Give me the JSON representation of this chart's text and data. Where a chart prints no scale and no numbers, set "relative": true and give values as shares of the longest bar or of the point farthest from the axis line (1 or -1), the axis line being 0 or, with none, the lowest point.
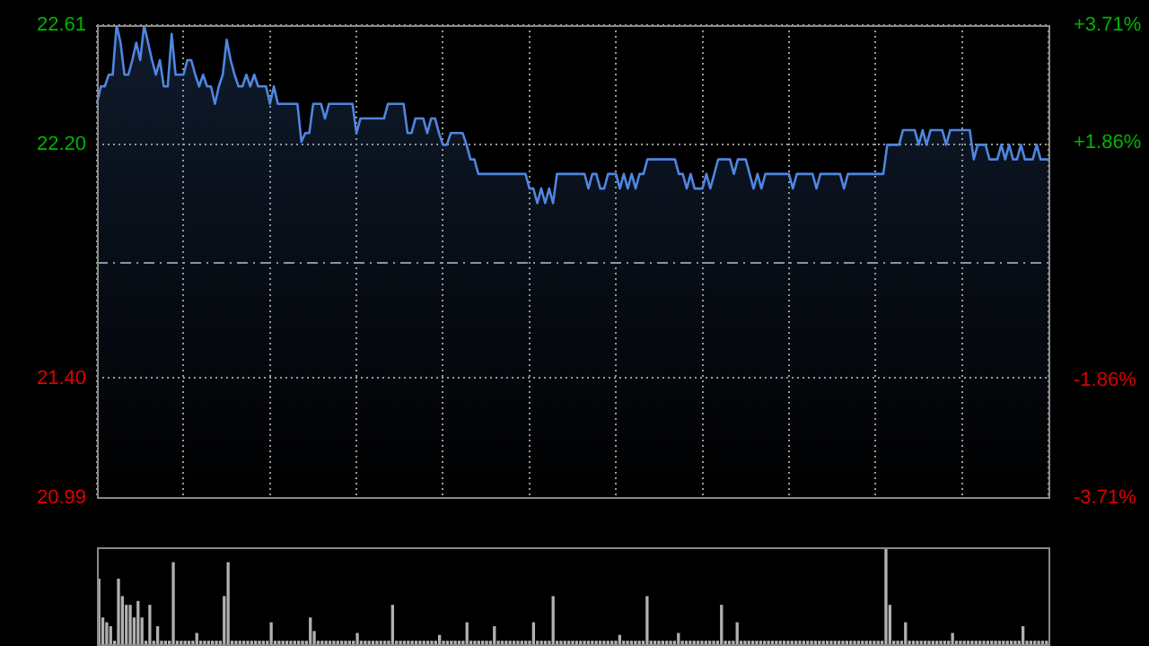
{
  "chart_data": [
    {
      "type": "area",
      "categories": [
        null,
        null,
        null,
        null,
        null,
        null,
        null,
        null,
        null,
        null,
        null,
        null,
        null,
        null,
        null,
        null,
        null,
        null,
        null,
        null,
        null,
        null,
        null,
        null,
        null,
        null,
        null,
        null,
        null,
        null,
        null,
        null,
        null,
        null,
        null,
        null,
        null,
        null,
        null,
        null,
        null,
        null,
        null,
        null,
        null,
        null,
        null,
        null,
        null,
        null,
        null,
        null,
        null,
        null,
        null,
        null,
        null,
        null,
        null,
        null,
        null,
        null,
        null,
        null,
        null,
        null,
        null,
        null,
        null,
        null,
        null,
        null,
        null,
        null,
        null,
        null,
        null,
        null,
        null,
        null,
        null,
        null,
        null,
        null,
        null,
        null,
        null,
        null,
        null,
        null,
        null,
        null,
        null,
        null,
        null,
        null,
        null,
        null,
        null,
        null,
        null,
        null,
        null,
        null,
        null,
        null,
        null,
        null,
        null,
        null,
        null,
        null,
        null,
        null,
        null,
        null,
        null,
        null,
        null,
        null,
        null,
        null,
        null,
        null,
        null,
        null,
        null,
        null,
        null,
        null,
        null,
        null,
        null,
        null,
        null,
        null,
        null,
        null,
        null,
        null,
        null,
        null,
        null,
        null,
        null,
        null,
        null,
        null,
        null,
        null,
        null,
        null,
        null,
        null,
        null,
        null,
        null,
        null,
        null,
        null,
        null,
        null,
        null,
        null,
        null,
        null,
        null,
        null,
        null,
        null,
        null,
        null,
        null,
        null,
        null,
        null,
        null,
        null,
        null,
        null,
        null,
        null,
        null,
        null,
        null,
        null,
        null,
        null,
        null,
        null,
        null,
        null,
        null,
        null,
        null,
        null,
        null,
        null,
        null,
        null,
        null,
        null,
        null,
        null,
        null,
        null,
        null,
        null,
        null,
        null,
        null,
        null,
        null,
        null,
        null,
        null,
        null,
        null,
        null,
        null,
        null,
        null,
        null,
        null,
        null,
        null,
        null,
        null,
        null,
        null,
        null,
        null,
        null,
        null,
        null,
        null,
        null,
        null,
        null,
        null,
        null,
        null,
        null
      ],
      "series": [
        {
          "color": "#4f86e0",
          "values": [
            22.34,
            22.4,
            22.4,
            22.44,
            22.44,
            22.61,
            22.55,
            22.44,
            22.44,
            22.49,
            22.55,
            22.49,
            22.61,
            22.55,
            22.49,
            22.44,
            22.49,
            22.4,
            22.4,
            22.58,
            22.44,
            22.44,
            22.44,
            22.49,
            22.49,
            22.44,
            22.4,
            22.44,
            22.4,
            22.4,
            22.34,
            22.4,
            22.44,
            22.56,
            22.49,
            22.44,
            22.4,
            22.4,
            22.44,
            22.4,
            22.44,
            22.4,
            22.4,
            22.4,
            22.34,
            22.4,
            22.34,
            22.34,
            22.34,
            22.34,
            22.34,
            22.34,
            22.21,
            22.24,
            22.24,
            22.34,
            22.34,
            22.34,
            22.29,
            22.34,
            22.34,
            22.34,
            22.34,
            22.34,
            22.34,
            22.34,
            22.24,
            22.29,
            22.29,
            22.29,
            22.29,
            22.29,
            22.29,
            22.29,
            22.34,
            22.34,
            22.34,
            22.34,
            22.34,
            22.24,
            22.24,
            22.29,
            22.29,
            22.29,
            22.24,
            22.29,
            22.29,
            22.24,
            22.2,
            22.2,
            22.24,
            22.24,
            22.24,
            22.24,
            22.2,
            22.15,
            22.15,
            22.1,
            22.1,
            22.1,
            22.1,
            22.1,
            22.1,
            22.1,
            22.1,
            22.1,
            22.1,
            22.1,
            22.1,
            22.1,
            22.05,
            22.05,
            22.0,
            22.05,
            22.0,
            22.05,
            22.0,
            22.1,
            22.1,
            22.1,
            22.1,
            22.1,
            22.1,
            22.1,
            22.1,
            22.05,
            22.1,
            22.1,
            22.05,
            22.05,
            22.1,
            22.1,
            22.1,
            22.05,
            22.1,
            22.05,
            22.1,
            22.05,
            22.1,
            22.1,
            22.15,
            22.15,
            22.15,
            22.15,
            22.15,
            22.15,
            22.15,
            22.15,
            22.1,
            22.1,
            22.05,
            22.1,
            22.05,
            22.05,
            22.05,
            22.1,
            22.05,
            22.1,
            22.15,
            22.15,
            22.15,
            22.15,
            22.1,
            22.15,
            22.15,
            22.15,
            22.1,
            22.05,
            22.1,
            22.05,
            22.1,
            22.1,
            22.1,
            22.1,
            22.1,
            22.1,
            22.1,
            22.05,
            22.1,
            22.1,
            22.1,
            22.1,
            22.1,
            22.05,
            22.1,
            22.1,
            22.1,
            22.1,
            22.1,
            22.1,
            22.05,
            22.1,
            22.1,
            22.1,
            22.1,
            22.1,
            22.1,
            22.1,
            22.1,
            22.1,
            22.1,
            22.2,
            22.2,
            22.2,
            22.2,
            22.25,
            22.25,
            22.25,
            22.25,
            22.2,
            22.25,
            22.2,
            22.25,
            22.25,
            22.25,
            22.25,
            22.2,
            22.25,
            22.25,
            22.25,
            22.25,
            22.25,
            22.25,
            22.15,
            22.2,
            22.2,
            22.2,
            22.15,
            22.15,
            22.15,
            22.2,
            22.15,
            22.2,
            22.15,
            22.15,
            22.2,
            22.15,
            22.15,
            22.15,
            22.2,
            22.15,
            22.15,
            22.15
          ]
        }
      ],
      "ylim": [
        20.99,
        22.61
      ],
      "yticks": [
        {
          "value": 20.99,
          "label": "20.99"
        },
        {
          "value": 21.4,
          "label": "21.40"
        },
        {
          "value": 22.2,
          "label": "22.20"
        },
        {
          "value": 22.61,
          "label": "22.61"
        }
      ],
      "y2lim": [
        -3.71,
        3.71
      ],
      "y2ticks": [
        {
          "value": -3.71,
          "label": "-3.71%"
        },
        {
          "value": -1.86,
          "label": "-1.86%"
        },
        {
          "value": 1.86,
          "label": "+1.86%"
        },
        {
          "value": 3.71,
          "label": "+3.71%"
        }
      ],
      "ref_lines": [
        {
          "axis": "y",
          "value": 21.8,
          "color": "#8a96a8",
          "line_style": "dashed"
        }
      ],
      "grid": true,
      "legend": false
    },
    {
      "type": "bar",
      "relative": true,
      "categories": [
        null,
        null,
        null,
        null,
        null,
        null,
        null,
        null,
        null,
        null,
        null,
        null,
        null,
        null,
        null,
        null,
        null,
        null,
        null,
        null,
        null,
        null,
        null,
        null,
        null,
        null,
        null,
        null,
        null,
        null,
        null,
        null,
        null,
        null,
        null,
        null,
        null,
        null,
        null,
        null,
        null,
        null,
        null,
        null,
        null,
        null,
        null,
        null,
        null,
        null,
        null,
        null,
        null,
        null,
        null,
        null,
        null,
        null,
        null,
        null,
        null,
        null,
        null,
        null,
        null,
        null,
        null,
        null,
        null,
        null,
        null,
        null,
        null,
        null,
        null,
        null,
        null,
        null,
        null,
        null,
        null,
        null,
        null,
        null,
        null,
        null,
        null,
        null,
        null,
        null,
        null,
        null,
        null,
        null,
        null,
        null,
        null,
        null,
        null,
        null,
        null,
        null,
        null,
        null,
        null,
        null,
        null,
        null,
        null,
        null,
        null,
        null,
        null,
        null,
        null,
        null,
        null,
        null,
        null,
        null,
        null,
        null,
        null,
        null,
        null,
        null,
        null,
        null,
        null,
        null,
        null,
        null,
        null,
        null,
        null,
        null,
        null,
        null,
        null,
        null,
        null,
        null,
        null,
        null,
        null,
        null,
        null,
        null,
        null,
        null,
        null,
        null,
        null,
        null,
        null,
        null,
        null,
        null,
        null,
        null,
        null,
        null,
        null,
        null,
        null,
        null,
        null,
        null,
        null,
        null,
        null,
        null,
        null,
        null,
        null,
        null,
        null,
        null,
        null,
        null,
        null,
        null,
        null,
        null,
        null,
        null,
        null,
        null,
        null,
        null,
        null,
        null,
        null,
        null,
        null,
        null,
        null,
        null,
        null,
        null,
        null,
        null,
        null,
        null,
        null,
        null,
        null,
        null,
        null,
        null,
        null,
        null,
        null,
        null,
        null,
        null,
        null,
        null,
        null,
        null,
        null,
        null,
        null,
        null,
        null,
        null,
        null,
        null,
        null,
        null,
        null,
        null,
        null,
        null,
        null,
        null,
        null,
        null,
        null,
        null,
        null,
        null,
        null
      ],
      "series": [
        {
          "color": "#b0b0b0",
          "values": [
            0.67,
            0.27,
            0.22,
            0.18,
            0.03,
            0.67,
            0.49,
            0.4,
            0.4,
            0.27,
            0.44,
            0.27,
            0.03,
            0.4,
            0.03,
            0.18,
            0.03,
            0.03,
            0.03,
            0.84,
            0.03,
            0.03,
            0.03,
            0.03,
            0.03,
            0.11,
            0.03,
            0.03,
            0.03,
            0.03,
            0.03,
            0.03,
            0.49,
            0.84,
            0.03,
            0.03,
            0.03,
            0.03,
            0.03,
            0.03,
            0.03,
            0.03,
            0.03,
            0.03,
            0.22,
            0.03,
            0.03,
            0.03,
            0.03,
            0.03,
            0.03,
            0.03,
            0.03,
            0.03,
            0.27,
            0.13,
            0.03,
            0.03,
            0.03,
            0.03,
            0.03,
            0.03,
            0.03,
            0.03,
            0.03,
            0.03,
            0.11,
            0.03,
            0.03,
            0.03,
            0.03,
            0.03,
            0.03,
            0.03,
            0.03,
            0.4,
            0.03,
            0.03,
            0.03,
            0.03,
            0.03,
            0.03,
            0.03,
            0.03,
            0.03,
            0.03,
            0.03,
            0.09,
            0.03,
            0.03,
            0.03,
            0.03,
            0.03,
            0.03,
            0.22,
            0.03,
            0.03,
            0.03,
            0.03,
            0.03,
            0.03,
            0.18,
            0.03,
            0.03,
            0.03,
            0.03,
            0.03,
            0.03,
            0.03,
            0.03,
            0.03,
            0.22,
            0.03,
            0.03,
            0.03,
            0.03,
            0.49,
            0.03,
            0.03,
            0.03,
            0.03,
            0.03,
            0.03,
            0.03,
            0.03,
            0.03,
            0.03,
            0.03,
            0.03,
            0.03,
            0.03,
            0.03,
            0.03,
            0.09,
            0.03,
            0.03,
            0.03,
            0.03,
            0.03,
            0.03,
            0.49,
            0.03,
            0.03,
            0.03,
            0.03,
            0.03,
            0.03,
            0.03,
            0.11,
            0.03,
            0.03,
            0.03,
            0.03,
            0.03,
            0.03,
            0.03,
            0.03,
            0.03,
            0.03,
            0.4,
            0.03,
            0.03,
            0.03,
            0.22,
            0.03,
            0.03,
            0.03,
            0.03,
            0.03,
            0.03,
            0.03,
            0.03,
            0.03,
            0.03,
            0.03,
            0.03,
            0.03,
            0.03,
            0.03,
            0.03,
            0.03,
            0.03,
            0.03,
            0.03,
            0.03,
            0.03,
            0.03,
            0.03,
            0.03,
            0.03,
            0.03,
            0.03,
            0.03,
            0.03,
            0.03,
            0.03,
            0.03,
            0.03,
            0.03,
            0.03,
            0.03,
            1,
            0.4,
            0.03,
            0.03,
            0.03,
            0.22,
            0.03,
            0.03,
            0.03,
            0.03,
            0.03,
            0.03,
            0.03,
            0.03,
            0.03,
            0.03,
            0.03,
            0.11,
            0.03,
            0.03,
            0.03,
            0.03,
            0.03,
            0.03,
            0.03,
            0.03,
            0.03,
            0.03,
            0.03,
            0.03,
            0.03,
            0.03,
            0.03,
            0.03,
            0.03,
            0.18,
            0.03,
            0.03,
            0.03,
            0.03,
            0.03,
            0.03
          ]
        }
      ],
      "legend": false
    }
  ]
}
